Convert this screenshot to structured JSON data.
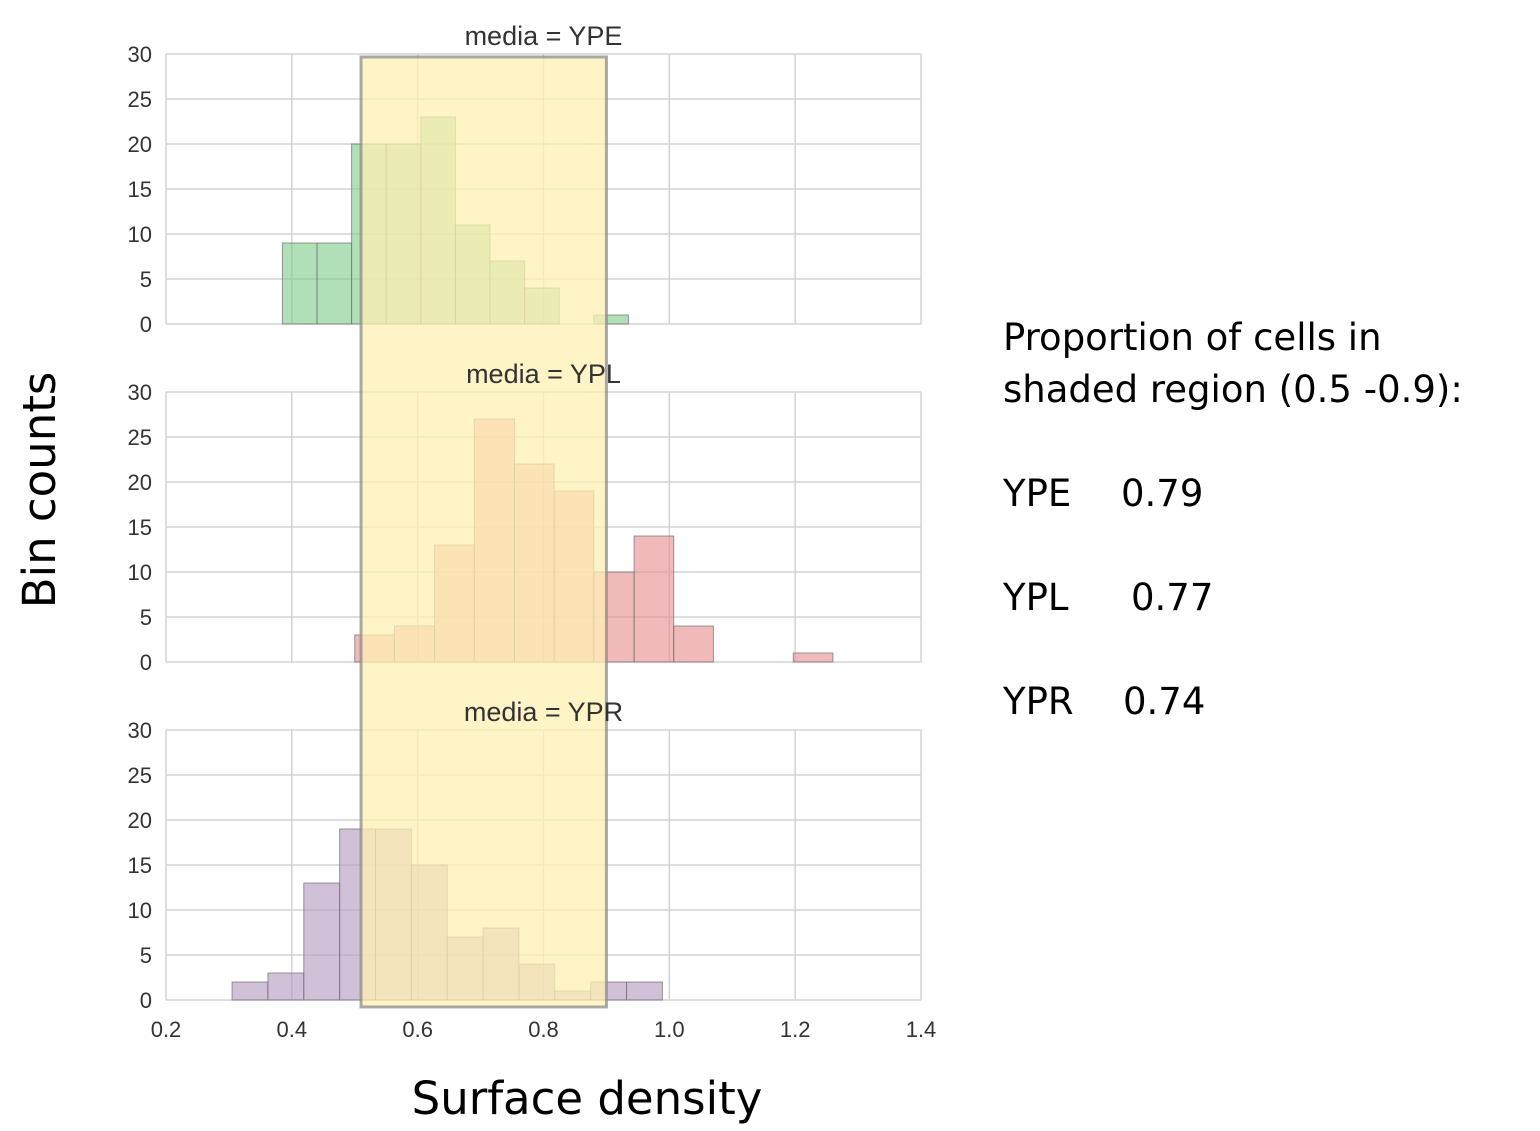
{
  "chart_data": {
    "type": "bar",
    "xlabel": "Surface density",
    "ylabel": "Bin counts",
    "xlim": [
      0.2,
      1.4
    ],
    "ylim": [
      0,
      30
    ],
    "xticks": [
      "0.2",
      "0.4",
      "0.6",
      "0.8",
      "1.0",
      "1.2",
      "1.4"
    ],
    "yticks": [
      "0",
      "5",
      "10",
      "15",
      "20",
      "25",
      "30"
    ],
    "grid": true,
    "shaded_region": {
      "x_start": 0.51,
      "x_end": 0.9,
      "color": "#fff0b3"
    },
    "panels": [
      {
        "title": "media = YPE",
        "color": "#80cc8c",
        "bins": [
          {
            "x0": 0.385,
            "x1": 0.44,
            "count": 9
          },
          {
            "x0": 0.44,
            "x1": 0.495,
            "count": 9
          },
          {
            "x0": 0.495,
            "x1": 0.55,
            "count": 20
          },
          {
            "x0": 0.55,
            "x1": 0.605,
            "count": 20
          },
          {
            "x0": 0.605,
            "x1": 0.66,
            "count": 23
          },
          {
            "x0": 0.66,
            "x1": 0.715,
            "count": 11
          },
          {
            "x0": 0.715,
            "x1": 0.77,
            "count": 7
          },
          {
            "x0": 0.77,
            "x1": 0.825,
            "count": 4
          },
          {
            "x0": 0.825,
            "x1": 0.88,
            "count": 0
          },
          {
            "x0": 0.88,
            "x1": 0.935,
            "count": 1
          }
        ]
      },
      {
        "title": "media = YPL",
        "color": "#e89090",
        "bins": [
          {
            "x0": 0.5,
            "x1": 0.563,
            "count": 3
          },
          {
            "x0": 0.563,
            "x1": 0.627,
            "count": 4
          },
          {
            "x0": 0.627,
            "x1": 0.69,
            "count": 13
          },
          {
            "x0": 0.69,
            "x1": 0.754,
            "count": 27
          },
          {
            "x0": 0.754,
            "x1": 0.817,
            "count": 22
          },
          {
            "x0": 0.817,
            "x1": 0.88,
            "count": 19
          },
          {
            "x0": 0.88,
            "x1": 0.944,
            "count": 10
          },
          {
            "x0": 0.944,
            "x1": 1.007,
            "count": 14
          },
          {
            "x0": 1.007,
            "x1": 1.07,
            "count": 4
          },
          {
            "x0": 1.07,
            "x1": 1.134,
            "count": 0
          },
          {
            "x0": 1.134,
            "x1": 1.197,
            "count": 0
          },
          {
            "x0": 1.197,
            "x1": 1.26,
            "count": 1
          }
        ]
      },
      {
        "title": "media = YPR",
        "color": "#b39ac0",
        "bins": [
          {
            "x0": 0.305,
            "x1": 0.362,
            "count": 2
          },
          {
            "x0": 0.362,
            "x1": 0.419,
            "count": 3
          },
          {
            "x0": 0.419,
            "x1": 0.476,
            "count": 13
          },
          {
            "x0": 0.476,
            "x1": 0.533,
            "count": 19
          },
          {
            "x0": 0.533,
            "x1": 0.59,
            "count": 19
          },
          {
            "x0": 0.59,
            "x1": 0.647,
            "count": 15
          },
          {
            "x0": 0.647,
            "x1": 0.704,
            "count": 7
          },
          {
            "x0": 0.704,
            "x1": 0.761,
            "count": 8
          },
          {
            "x0": 0.761,
            "x1": 0.818,
            "count": 4
          },
          {
            "x0": 0.818,
            "x1": 0.875,
            "count": 1
          },
          {
            "x0": 0.875,
            "x1": 0.932,
            "count": 2
          },
          {
            "x0": 0.932,
            "x1": 0.989,
            "count": 2
          }
        ]
      }
    ]
  },
  "side_panel": {
    "heading_line1": "Proportion of cells in",
    "heading_line2": "shaded region (0.5 -0.9):",
    "stats": [
      {
        "label": "YPE",
        "value": "0.79"
      },
      {
        "label": "YPL",
        "value": "0.77"
      },
      {
        "label": "YPR",
        "value": "0.74"
      }
    ]
  }
}
